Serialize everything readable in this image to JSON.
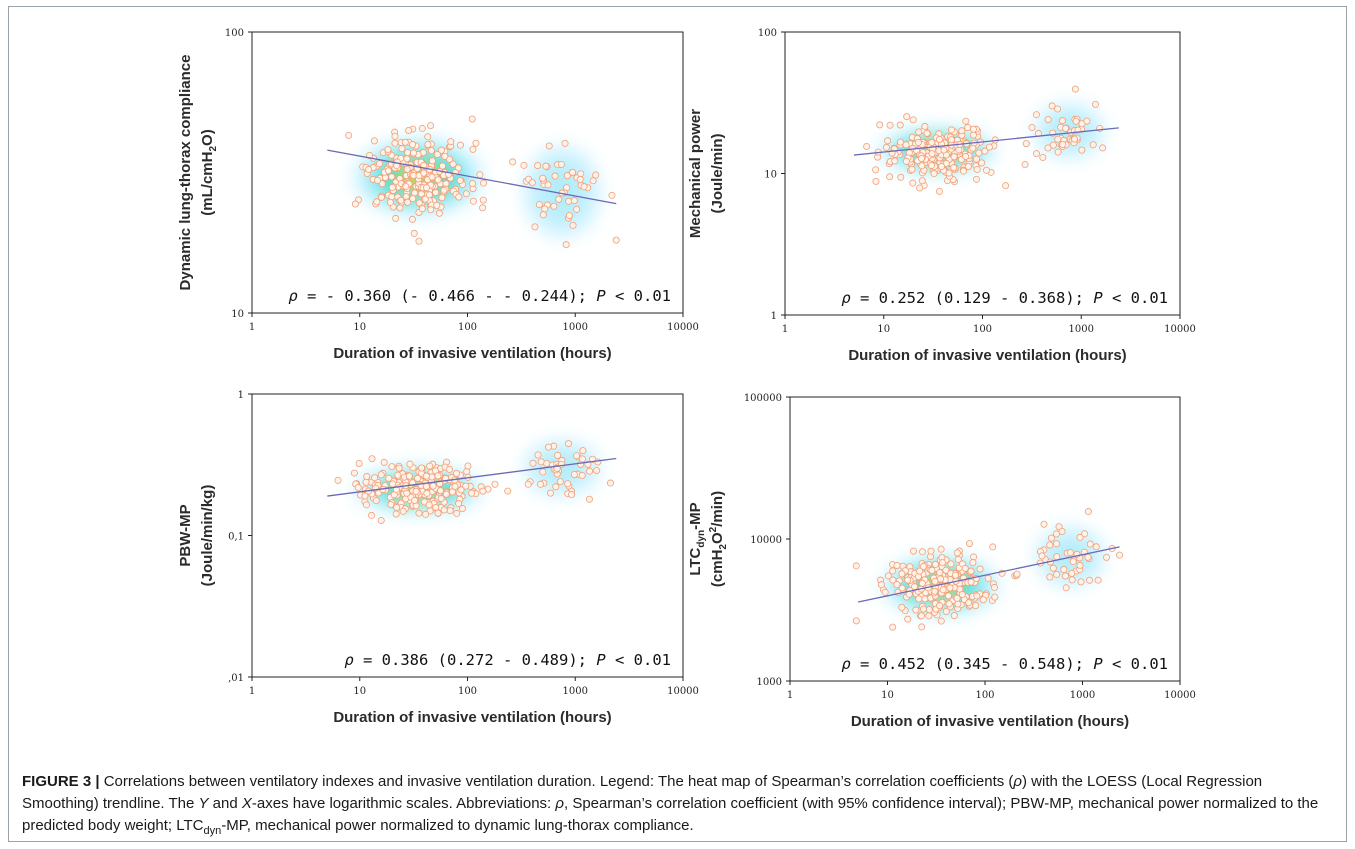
{
  "chart_data": [
    {
      "type": "scatter",
      "ylabel_line1": "Dynamic lung-thorax compliance",
      "ylabel_line2": "(mL/cmH",
      "ylabel_sub": "2",
      "ylabel_end": "O)",
      "xlabel": "Duration of invasive ventilation (hours)",
      "x_scale": "log",
      "y_scale": "log",
      "xlim": [
        1,
        10000
      ],
      "ylim": [
        10,
        100
      ],
      "x_ticks": [
        "1",
        "10",
        "100",
        "1000",
        "10000"
      ],
      "y_ticks": [
        "10",
        "100"
      ],
      "stat_rho": "ρ",
      "stat_text": " = - 0.360 (- 0.466 - - 0.244); ",
      "stat_p": "P",
      "stat_end": " < 0.01",
      "trend": {
        "x": [
          5,
          2400
        ],
        "y": [
          38,
          24.5
        ]
      },
      "cluster": {
        "cx": 35,
        "cy": 30.5,
        "sx": 0.37,
        "sy": 0.085
      },
      "tail": {
        "cx": 750,
        "cy": 27,
        "sx": 0.25,
        "sy": 0.1
      },
      "n_points": 260
    },
    {
      "type": "scatter",
      "ylabel_line1": "Mechanical power",
      "ylabel_line2": "(Joule/min)",
      "ylabel_sub": "",
      "ylabel_end": "",
      "xlabel": "Duration of invasive ventilation (hours)",
      "x_scale": "log",
      "y_scale": "log",
      "xlim": [
        1,
        10000
      ],
      "ylim": [
        1,
        100
      ],
      "x_ticks": [
        "1",
        "10",
        "100",
        "1000",
        "10000"
      ],
      "y_ticks": [
        "1",
        "10",
        "100"
      ],
      "stat_rho": "ρ",
      "stat_text": " = 0.252 (0.129 - 0.368); ",
      "stat_p": "P",
      "stat_end": " < 0.01",
      "trend": {
        "x": [
          5,
          2400
        ],
        "y": [
          13.5,
          21
        ]
      },
      "cluster": {
        "cx": 35,
        "cy": 14.5,
        "sx": 0.37,
        "sy": 0.1
      },
      "tail": {
        "cx": 750,
        "cy": 20,
        "sx": 0.25,
        "sy": 0.12
      },
      "n_points": 260
    },
    {
      "type": "scatter",
      "ylabel_line1": "PBW-MP",
      "ylabel_line2": "(Joule/min/kg)",
      "ylabel_sub": "",
      "ylabel_end": "",
      "xlabel": "Duration of invasive ventilation (hours)",
      "x_scale": "log",
      "y_scale": "log",
      "xlim": [
        1,
        10000
      ],
      "ylim": [
        0.01,
        1
      ],
      "x_ticks": [
        "1",
        "10",
        "100",
        "1000",
        "10000"
      ],
      "y_ticks": [
        ",01",
        "0,1",
        "1"
      ],
      "stat_rho": "ρ",
      "stat_text": " = 0.386 (0.272 - 0.489); ",
      "stat_p": "P",
      "stat_end": " < 0.01",
      "trend": {
        "x": [
          5,
          2400
        ],
        "y": [
          0.19,
          0.35
        ]
      },
      "cluster": {
        "cx": 35,
        "cy": 0.21,
        "sx": 0.37,
        "sy": 0.1
      },
      "tail": {
        "cx": 750,
        "cy": 0.3,
        "sx": 0.25,
        "sy": 0.12
      },
      "n_points": 260
    },
    {
      "type": "scatter",
      "ylabel_line1": "LTC",
      "ylabel_line1_sub": "dyn",
      "ylabel_line1_end": "-MP",
      "ylabel_line2": "(cmH",
      "ylabel_sub": "2",
      "ylabel_end": "O",
      "ylabel_sup": "2",
      "ylabel_tail": "/min)",
      "xlabel": "Duration of invasive ventilation (hours)",
      "x_scale": "log",
      "y_scale": "log",
      "xlim": [
        1,
        10000
      ],
      "ylim": [
        1000,
        100000
      ],
      "x_ticks": [
        "1",
        "10",
        "100",
        "1000",
        "10000"
      ],
      "y_ticks": [
        "1000",
        "10000",
        "100000"
      ],
      "stat_rho": "ρ",
      "stat_text": " = 0.452 (0.345 - 0.548); ",
      "stat_p": "P",
      "stat_end": " < 0.01",
      "trend": {
        "x": [
          5,
          2400
        ],
        "y": [
          3600,
          8800
        ]
      },
      "cluster": {
        "cx": 35,
        "cy": 4700,
        "sx": 0.37,
        "sy": 0.13
      },
      "tail": {
        "cx": 750,
        "cy": 7500,
        "sx": 0.25,
        "sy": 0.13
      },
      "n_points": 260
    }
  ],
  "caption": {
    "label": "FIGURE 3 |",
    "t1": " Correlations between ventilatory indexes and invasive ventilation duration. Legend: The heat map of Spearman’s correlation coefficients (",
    "rho": "ρ",
    "t2": ") with the LOESS (Local Regression Smoothing) trendline. The ",
    "y": "Y",
    "t3": " and ",
    "x": "X",
    "t4": "-axes have logarithmic scales. Abbreviations: ",
    "rho2": "ρ",
    "t5": ", Spearman’s correlation coefficient (with 95% confidence interval); PBW-MP, mechanical power normalized to the predicted body weight; LTC",
    "sub": "dyn",
    "t6": "-MP, mechanical power normalized to dynamic lung-thorax compliance."
  },
  "colors": {
    "heat_low": "#bfefff",
    "heat_mid": "#22d6c0",
    "heat_high": "#f5e600",
    "heat_peak": "#e0241a",
    "point_fill": "#fff2e8",
    "point_stroke": "#f0a07a",
    "trend": "#6a6ab8",
    "frame": "#9aa3ab"
  }
}
